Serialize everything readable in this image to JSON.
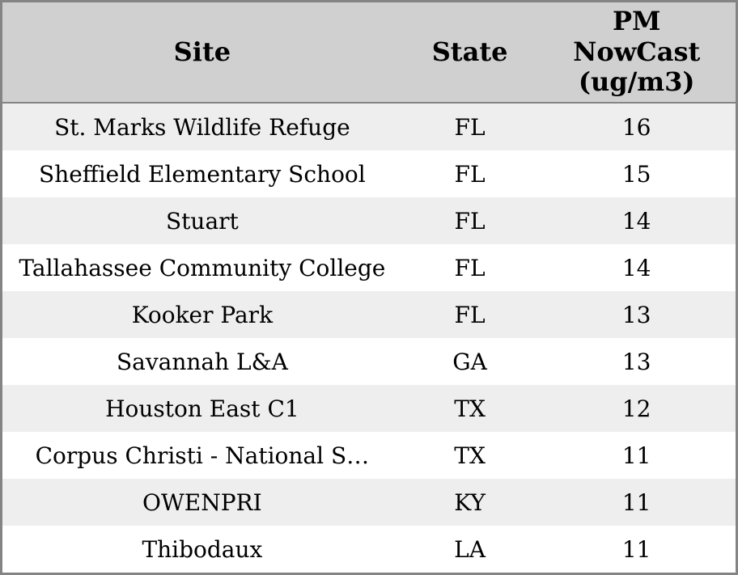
{
  "chart_data": {
    "type": "table",
    "columns": [
      {
        "label": "Site"
      },
      {
        "label": "State"
      },
      {
        "label": "PM\nNowCast\n(ug/m3)"
      }
    ],
    "rows": [
      {
        "site": "St. Marks Wildlife Refuge",
        "state": "FL",
        "pm_nowcast": 16
      },
      {
        "site": "Sheffield Elementary School",
        "state": "FL",
        "pm_nowcast": 15
      },
      {
        "site": "Stuart",
        "state": "FL",
        "pm_nowcast": 14
      },
      {
        "site": "Tallahassee Community College",
        "state": "FL",
        "pm_nowcast": 14
      },
      {
        "site": "Kooker Park",
        "state": "FL",
        "pm_nowcast": 13
      },
      {
        "site": "Savannah L&A",
        "state": "GA",
        "pm_nowcast": 13
      },
      {
        "site": "Houston East C1",
        "state": "TX",
        "pm_nowcast": 12
      },
      {
        "site": "Corpus Christi - National S…",
        "state": "TX",
        "pm_nowcast": 11
      },
      {
        "site": "OWENPRI",
        "state": "KY",
        "pm_nowcast": 11
      },
      {
        "site": "Thibodaux",
        "state": "LA",
        "pm_nowcast": 11
      }
    ],
    "layout": {
      "legend": "none",
      "grid": "row-stripes"
    }
  },
  "colors": {
    "header_bg": "#d0d0d0",
    "row_stripe_bg": "#eeeeee",
    "row_bg": "#ffffff",
    "border": "#848484",
    "text": "#000000"
  }
}
